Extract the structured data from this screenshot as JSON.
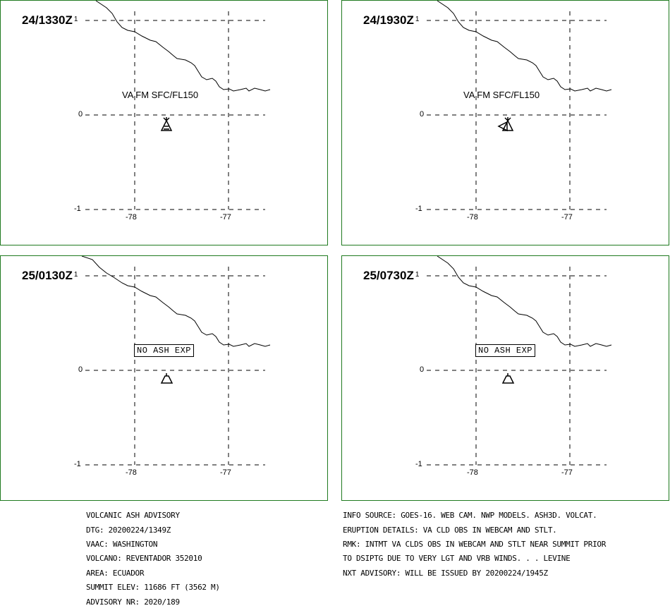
{
  "panels": [
    {
      "time": "24/1330Z",
      "super": "1",
      "label": "VA FM SFC/FL150",
      "box": "",
      "volcano": "volcano-erupting-3"
    },
    {
      "time": "24/1930Z",
      "super": "1",
      "label": "VA FM SFC/FL150",
      "box": "",
      "volcano": "volcano-erupting-4"
    },
    {
      "time": "25/0130Z",
      "super": "1",
      "label": "",
      "box": "NO ASH EXP",
      "volcano": "volcano-plain"
    },
    {
      "time": "25/0730Z",
      "super": "1",
      "label": "",
      "box": "NO ASH EXP",
      "volcano": "volcano-plain"
    }
  ],
  "axes": {
    "lat_labels": [
      "0",
      "-1"
    ],
    "lon_labels": [
      "-78",
      "-77"
    ]
  },
  "advisory_left": [
    "VOLCANIC ASH ADVISORY",
    "DTG: 20200224/1349Z",
    "VAAC: WASHINGTON",
    "VOLCANO: REVENTADOR 352010",
    "AREA: ECUADOR",
    "SUMMIT ELEV: 11686 FT (3562 M)",
    "ADVISORY NR: 2020/189"
  ],
  "advisory_right": [
    "INFO SOURCE: GOES-16. WEB CAM. NWP MODELS. ASH3D. VOLCAT.",
    "ERUPTION DETAILS: VA CLD OBS IN WEBCAM AND STLT.",
    "RMK: INTMT VA CLDS OBS IN WEBCAM AND STLT NEAR SUMMIT PRIOR",
    "TO DSIPTG DUE TO VERY LGT AND VRB WINDS. . . LEVINE",
    "NXT ADVISORY: WILL BE ISSUED BY 20200224/1945Z"
  ],
  "colors": {
    "frame": "#1f7a1f",
    "ink": "#000000",
    "background": "#ffffff"
  }
}
